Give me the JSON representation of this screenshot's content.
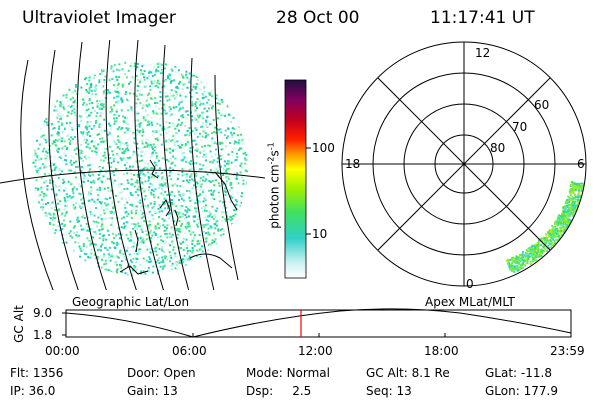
{
  "header": {
    "instrument": "Ultraviolet Imager",
    "date": "28 Oct 00",
    "time": "11:17:41 UT"
  },
  "colorbar": {
    "unit_label": "photon cm",
    "unit_exp1": "-2",
    "unit_mid": "s",
    "unit_exp2": "-1",
    "tick_100": "100",
    "tick_10": "10"
  },
  "left_panel": {
    "label": "Geographic Lat/Lon"
  },
  "right_panel": {
    "label": "Apex MLat/MLT",
    "mlt_12": "12",
    "mlt_18": "18",
    "mlt_6": "6",
    "mlt_0": "0",
    "lat_60": "60",
    "lat_70": "70",
    "lat_80": "80"
  },
  "altitude_plot": {
    "ylabel": "GC Alt",
    "ytick_top": "9.0",
    "ytick_bottom": "1.8",
    "xticks": [
      "00:00",
      "06:00",
      "12:00",
      "18:00",
      "23:59"
    ],
    "marker_color": "#ff0000"
  },
  "info": {
    "flt_label": "Flt:",
    "flt_value": "1356",
    "ip_label": "IP:",
    "ip_value": "36.0",
    "door_label": "Door:",
    "door_value": "Open",
    "gain_label": "Gain:",
    "gain_value": "13",
    "mode_label": "Mode:",
    "mode_value": "Normal",
    "dsp_label": "Dsp:",
    "dsp_value": "2.5",
    "gcalt_label": "GC Alt:",
    "gcalt_value": "8.1 Re",
    "seq_label": "Seq:",
    "seq_value": "13",
    "glat_label": "GLat:",
    "glat_value": "-11.8",
    "glon_label": "GLon:",
    "glon_value": "177.9"
  }
}
